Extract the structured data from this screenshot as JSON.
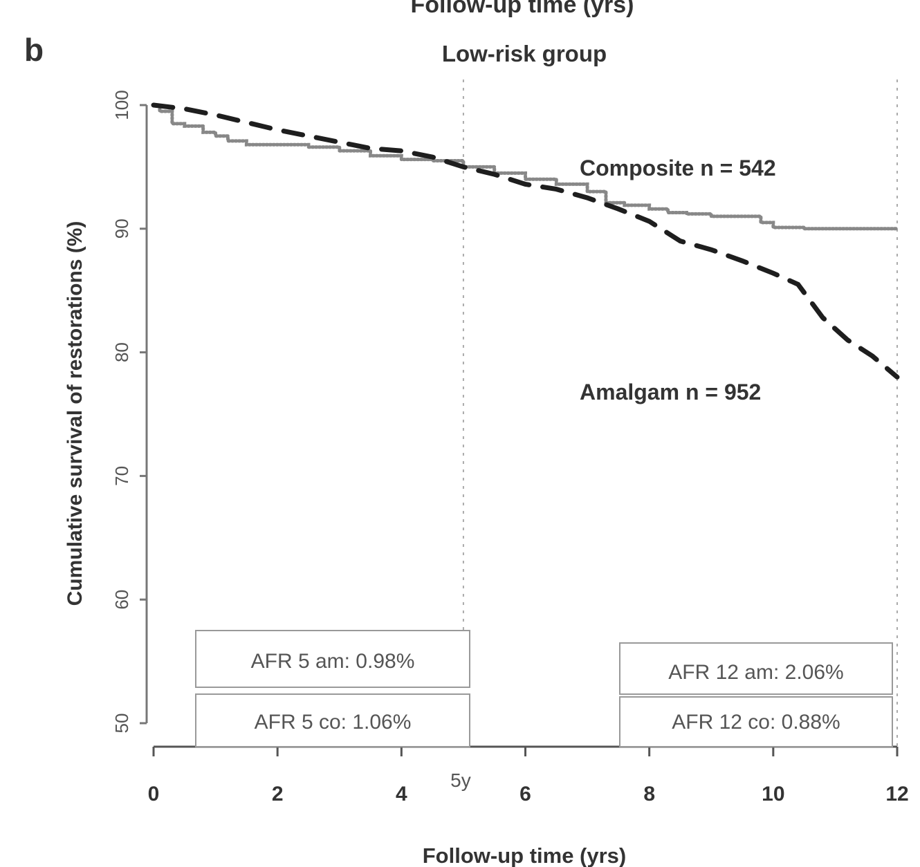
{
  "panel_label": "b",
  "top_cut_text": "Follow-up time (yrs)",
  "chart_data": {
    "type": "line",
    "title": "Low-risk group",
    "xlabel": "Follow-up time (yrs)",
    "ylabel": "Cumulative survival of restorations (%)",
    "xlim": [
      0,
      12
    ],
    "ylim": [
      50,
      100
    ],
    "x_ticks": [
      0,
      2,
      4,
      6,
      8,
      10,
      12
    ],
    "y_ticks": [
      50,
      60,
      70,
      80,
      90,
      100
    ],
    "x_ticks_labels": [
      "0",
      "2",
      "4",
      "6",
      "8",
      "10",
      "12"
    ],
    "y_ticks_labels": [
      "50",
      "60",
      "70",
      "80",
      "90",
      "100"
    ],
    "reference_lines": [
      {
        "x": 5,
        "label": "5y"
      },
      {
        "x": 12,
        "label": ""
      }
    ],
    "series": [
      {
        "name": "Composite n = 542",
        "style": "dotted",
        "color": "#8c8c8c",
        "x": [
          0,
          0.1,
          0.3,
          0.5,
          0.8,
          1.0,
          1.2,
          1.5,
          2.0,
          2.5,
          3.0,
          3.5,
          4.0,
          4.5,
          5.0,
          5.5,
          6.0,
          6.5,
          7.0,
          7.3,
          7.6,
          8.0,
          8.3,
          8.6,
          9.0,
          9.3,
          9.6,
          9.8,
          10.0,
          10.5,
          11.0,
          11.5,
          12.0
        ],
        "y": [
          100,
          99.5,
          98.5,
          98.3,
          97.8,
          97.5,
          97.1,
          96.8,
          96.8,
          96.6,
          96.3,
          95.9,
          95.6,
          95.5,
          95.0,
          94.5,
          94.0,
          93.6,
          93.0,
          92.1,
          91.9,
          91.6,
          91.3,
          91.2,
          91.0,
          91.0,
          91.0,
          90.5,
          90.1,
          90.0,
          90.0,
          90.0,
          90.0
        ]
      },
      {
        "name": "Amalgam n = 952",
        "style": "dashed",
        "color": "#222222",
        "x": [
          0,
          0.5,
          1.0,
          1.5,
          2.0,
          2.5,
          3.0,
          3.5,
          4.0,
          4.5,
          5.0,
          5.5,
          6.0,
          6.5,
          7.0,
          7.5,
          8.0,
          8.5,
          9.0,
          9.5,
          10.0,
          10.4,
          10.8,
          11.2,
          11.6,
          12.0
        ]
      },
      {
        "name_hidden": true
      }
    ],
    "series_amalgam_y": [
      100,
      99.7,
      99.2,
      98.6,
      98.0,
      97.5,
      97.0,
      96.5,
      96.3,
      95.8,
      95.0,
      94.4,
      93.6,
      93.2,
      92.5,
      91.6,
      90.6,
      89.0,
      88.3,
      87.4,
      86.4,
      85.5,
      82.8,
      81.0,
      79.7,
      78.0
    ],
    "annotations": [
      {
        "text": "AFR 5 am: 0.98%"
      },
      {
        "text": "AFR 5 co: 1.06%"
      },
      {
        "text": "AFR 12 am: 2.06%"
      },
      {
        "text": "AFR 12 co: 0.88%"
      }
    ],
    "legend_position": "inline-right",
    "grid": false
  }
}
